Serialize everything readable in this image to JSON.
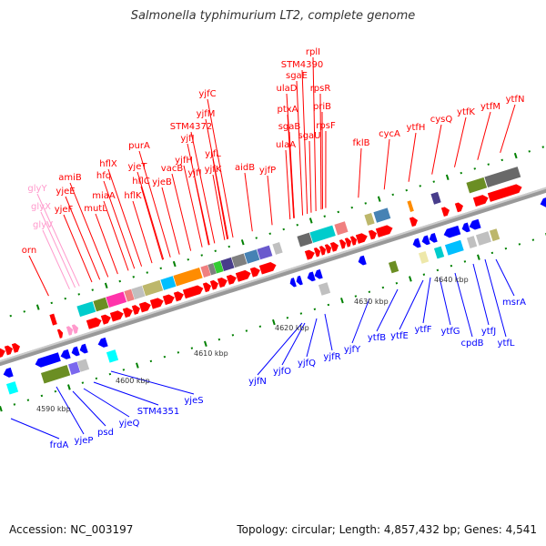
{
  "title": "Salmonella typhimurium LT2, complete genome",
  "footer": {
    "accession": "Accession: NC_003197",
    "topology": "Topology: circular; Length: 4,857,432 bp; Genes: 4,541"
  },
  "colors": {
    "forward": "#ff0000",
    "reverse": "#0000ff",
    "trna": "#ff99cc",
    "backbone": "#999999",
    "tick": "#008000",
    "kbp": "#333333"
  },
  "scale_labels": [
    "4590 kbp",
    "4600 kbp",
    "4610 kbp",
    "4620 kbp",
    "4630 kbp",
    "4640 kbp"
  ],
  "top_labels": [
    {
      "text": "orn",
      "kind": "forward"
    },
    {
      "text": "glyY",
      "kind": "trna"
    },
    {
      "text": "glyX",
      "kind": "trna"
    },
    {
      "text": "glyV",
      "kind": "trna"
    },
    {
      "text": "yjeF",
      "kind": "forward"
    },
    {
      "text": "yjeE",
      "kind": "forward"
    },
    {
      "text": "amiB",
      "kind": "forward"
    },
    {
      "text": "mutL",
      "kind": "forward"
    },
    {
      "text": "miaA",
      "kind": "forward"
    },
    {
      "text": "hfq",
      "kind": "forward"
    },
    {
      "text": "hflX",
      "kind": "forward"
    },
    {
      "text": "hflK",
      "kind": "forward"
    },
    {
      "text": "hflC",
      "kind": "forward"
    },
    {
      "text": "yjeT",
      "kind": "forward"
    },
    {
      "text": "purA",
      "kind": "forward"
    },
    {
      "text": "yjeB",
      "kind": "forward"
    },
    {
      "text": "vacB",
      "kind": "forward"
    },
    {
      "text": "yjfH",
      "kind": "forward"
    },
    {
      "text": "yjfI",
      "kind": "forward"
    },
    {
      "text": "yjfK",
      "kind": "forward"
    },
    {
      "text": "yjfL",
      "kind": "forward"
    },
    {
      "text": "yjfJ",
      "kind": "forward"
    },
    {
      "text": "STM4372",
      "kind": "forward"
    },
    {
      "text": "yjfM",
      "kind": "forward"
    },
    {
      "text": "yjfC",
      "kind": "forward"
    },
    {
      "text": "aidB",
      "kind": "forward"
    },
    {
      "text": "yjfP",
      "kind": "forward"
    },
    {
      "text": "ulaA",
      "kind": "forward"
    },
    {
      "text": "sgaB",
      "kind": "forward"
    },
    {
      "text": "ptxA",
      "kind": "forward"
    },
    {
      "text": "ulaD",
      "kind": "forward"
    },
    {
      "text": "sgaU",
      "kind": "forward"
    },
    {
      "text": "sgaE",
      "kind": "forward"
    },
    {
      "text": "STM4390",
      "kind": "forward"
    },
    {
      "text": "rplI",
      "kind": "forward"
    },
    {
      "text": "rpsR",
      "kind": "forward"
    },
    {
      "text": "priB",
      "kind": "forward"
    },
    {
      "text": "rpsF",
      "kind": "forward"
    },
    {
      "text": "fklB",
      "kind": "forward"
    },
    {
      "text": "cycA",
      "kind": "forward"
    },
    {
      "text": "ytfH",
      "kind": "forward"
    },
    {
      "text": "cysQ",
      "kind": "forward"
    },
    {
      "text": "ytfK",
      "kind": "forward"
    },
    {
      "text": "ytfM",
      "kind": "forward"
    },
    {
      "text": "ytfN",
      "kind": "forward"
    }
  ],
  "bottom_labels": [
    {
      "text": "frdA"
    },
    {
      "text": "yjeP"
    },
    {
      "text": "psd"
    },
    {
      "text": "yjeQ"
    },
    {
      "text": "STM4351"
    },
    {
      "text": "yjeS"
    },
    {
      "text": "yjfN"
    },
    {
      "text": "yjfO"
    },
    {
      "text": "yjfQ"
    },
    {
      "text": "yjfR"
    },
    {
      "text": "yjfY"
    },
    {
      "text": "ytfB"
    },
    {
      "text": "ytfE"
    },
    {
      "text": "ytfF"
    },
    {
      "text": "ytfG"
    },
    {
      "text": "cpdB"
    },
    {
      "text": "ytfJ"
    },
    {
      "text": "ytfL"
    },
    {
      "text": "msrA"
    }
  ]
}
